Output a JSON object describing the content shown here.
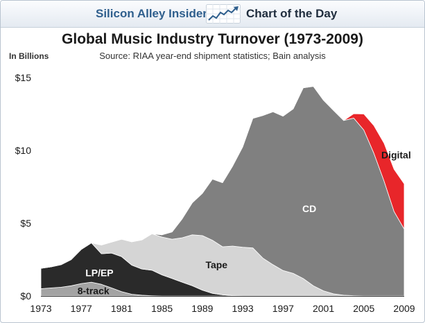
{
  "header": {
    "brand": "Silicon Alley Insider",
    "tagline": "Chart of the Day",
    "logo_icon": "rising-line-chart-icon"
  },
  "chart_data": {
    "type": "area",
    "stacked": true,
    "title": "Global Music Industry Turnover (1973-2009)",
    "subtitle": "Source: RIAA year-end shipment statistics; Bain analysis",
    "ylabel": "In Billions",
    "xlim": [
      1973,
      2009
    ],
    "ylim": [
      0,
      15
    ],
    "x_ticks": [
      1973,
      1977,
      1981,
      1985,
      1989,
      1993,
      1997,
      2001,
      2005,
      2009
    ],
    "x_tick_labels": [
      "1973",
      "1977",
      "1981",
      "1985",
      "1989",
      "1993",
      "1997",
      "2001",
      "2005",
      "2009"
    ],
    "y_ticks": [
      0,
      5,
      10,
      15
    ],
    "y_tick_labels": [
      "$0",
      "$5",
      "$10",
      "$15"
    ],
    "grid": false,
    "legend": "inline labels",
    "x": [
      1973,
      1974,
      1975,
      1976,
      1977,
      1978,
      1979,
      1980,
      1981,
      1982,
      1983,
      1984,
      1985,
      1986,
      1987,
      1988,
      1989,
      1990,
      1991,
      1992,
      1993,
      1994,
      1995,
      1996,
      1997,
      1998,
      1999,
      2000,
      2001,
      2002,
      2003,
      2004,
      2005,
      2006,
      2007,
      2008,
      2009
    ],
    "series": [
      {
        "name": "8-track",
        "color": "#a3a3a3",
        "values": [
          0.5,
          0.55,
          0.6,
          0.7,
          0.85,
          0.95,
          0.8,
          0.55,
          0.3,
          0.12,
          0.05,
          0.02,
          0,
          0,
          0,
          0,
          0,
          0,
          0,
          0,
          0,
          0,
          0,
          0,
          0,
          0,
          0,
          0,
          0,
          0,
          0,
          0,
          0,
          0,
          0,
          0,
          0
        ]
      },
      {
        "name": "LP/EP",
        "color": "#2a2a2a",
        "values": [
          1.4,
          1.45,
          1.55,
          1.8,
          2.35,
          2.7,
          2.1,
          2.4,
          2.4,
          2.0,
          1.8,
          1.75,
          1.45,
          1.2,
          0.95,
          0.7,
          0.4,
          0.18,
          0.08,
          0.03,
          0,
          0,
          0,
          0,
          0,
          0,
          0,
          0,
          0,
          0,
          0,
          0,
          0,
          0,
          0,
          0,
          0
        ]
      },
      {
        "name": "Tape",
        "color": "#d5d5d5",
        "values": [
          0,
          0,
          0,
          0,
          0,
          0,
          0.6,
          0.75,
          1.2,
          1.6,
          2.0,
          2.5,
          2.6,
          2.7,
          3.05,
          3.5,
          3.75,
          3.65,
          3.3,
          3.4,
          3.35,
          3.3,
          2.6,
          2.15,
          1.75,
          1.55,
          1.2,
          0.7,
          0.35,
          0.15,
          0.05,
          0.02,
          0,
          0,
          0,
          0,
          0
        ]
      },
      {
        "name": "CD",
        "color": "#808080",
        "values": [
          0,
          0,
          0,
          0,
          0,
          0,
          0,
          0,
          0,
          0,
          0,
          0,
          0.15,
          0.5,
          1.3,
          2.2,
          2.9,
          4.2,
          4.4,
          5.5,
          6.9,
          8.9,
          9.8,
          10.5,
          10.6,
          11.3,
          13.1,
          13.7,
          13.1,
          12.6,
          12.0,
          12.2,
          11.4,
          9.8,
          7.9,
          5.8,
          4.6
        ]
      },
      {
        "name": "Digital",
        "color": "#e8262a",
        "values": [
          0,
          0,
          0,
          0,
          0,
          0,
          0,
          0,
          0,
          0,
          0,
          0,
          0,
          0,
          0,
          0,
          0,
          0,
          0,
          0,
          0,
          0,
          0,
          0,
          0,
          0,
          0,
          0,
          0,
          0,
          0,
          0.3,
          1.1,
          1.9,
          2.6,
          2.9,
          3.1
        ]
      }
    ],
    "labels": [
      {
        "text": "8-track",
        "series": "8-track",
        "x": 1978.2,
        "y": 0.35,
        "color": "#1a1a1a"
      },
      {
        "text": "LP/EP",
        "series": "LP/EP",
        "x": 1978.8,
        "y": 1.6,
        "color": "#ffffff"
      },
      {
        "text": "Tape",
        "series": "Tape",
        "x": 1990.4,
        "y": 2.15,
        "color": "#1a1a1a"
      },
      {
        "text": "CD",
        "series": "CD",
        "x": 1999.6,
        "y": 6.0,
        "color": "#ffffff"
      },
      {
        "text": "Digital",
        "series": "Digital",
        "x": 2008.2,
        "y": 9.7,
        "color": "#1a1a1a"
      }
    ]
  }
}
